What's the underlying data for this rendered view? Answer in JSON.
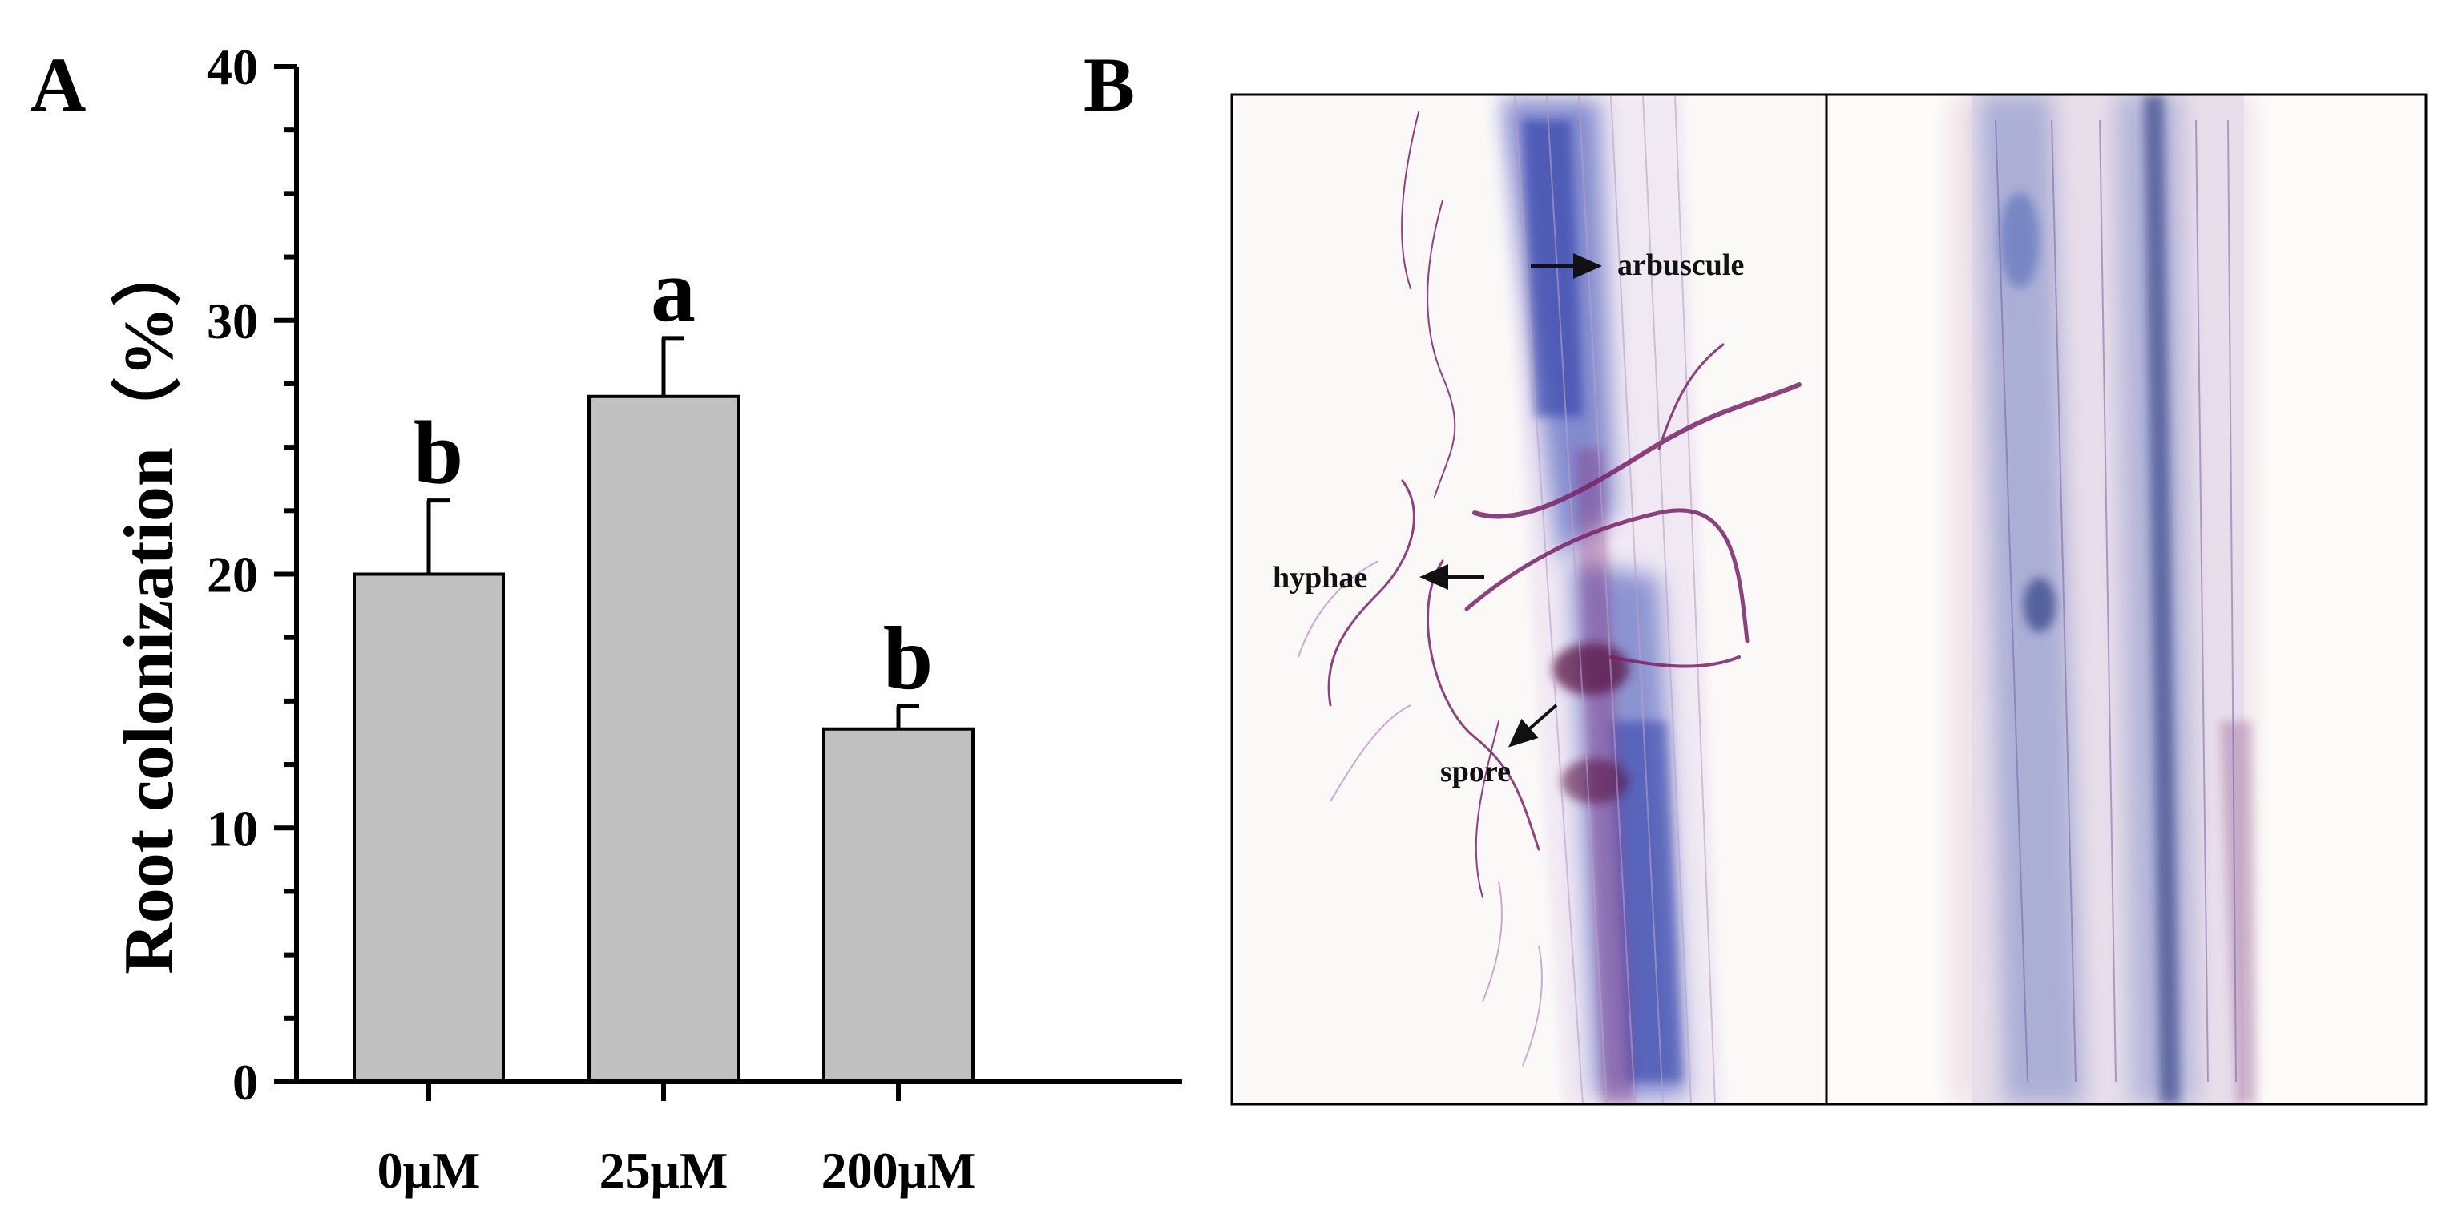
{
  "panels": {
    "a_label": "A",
    "b_label": "B"
  },
  "chart_data": {
    "type": "bar",
    "title": "",
    "xlabel": "",
    "ylabel": "Root colonization（%）",
    "ylim": [
      0,
      40
    ],
    "yticks": [
      "0",
      "10",
      "20",
      "30",
      "40"
    ],
    "minor_tick_step": 2.5,
    "categories": [
      "0μM",
      "25μM",
      "200μM"
    ],
    "values": [
      20.0,
      27.0,
      13.9
    ],
    "errors": [
      2.9,
      2.3,
      0.9
    ],
    "significance": [
      "b",
      "a",
      "b"
    ],
    "bar_color": "#c0c0c0",
    "edge_color": "#000000"
  },
  "micrographs": {
    "left": {
      "annotations": {
        "arbuscule": "arbuscule",
        "hyphae": "hyphae",
        "spore": "spore"
      },
      "stain_blue": "#2c3fb0",
      "stain_purple": "#8a2a78"
    },
    "right": {
      "stain_blue": "#3a5ab0",
      "stain_purple": "#7a3a80"
    }
  }
}
